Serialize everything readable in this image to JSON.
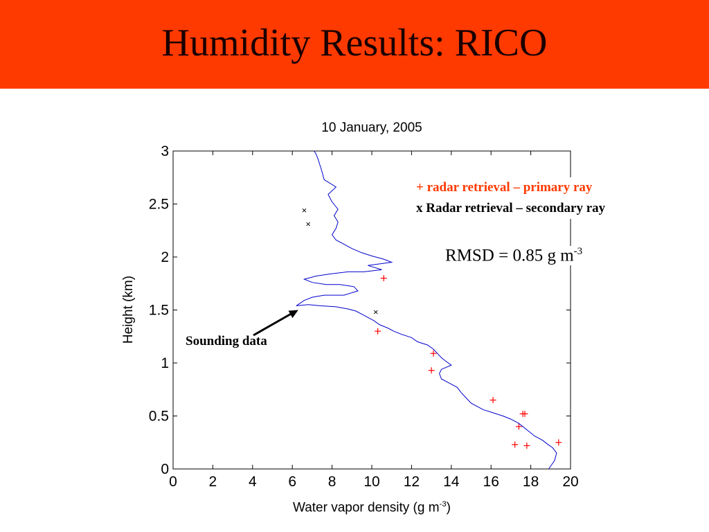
{
  "slide": {
    "title": "Humidity Results: RICO"
  },
  "header_color": "#ff3a00",
  "chart_data": {
    "type": "scatter",
    "title": "10 January, 2005",
    "xlabel": "Water vapor density (g m",
    "xlabel_sup": "-3",
    "xlabel_suffix": ")",
    "ylabel": "Height (km)",
    "xlim": [
      0,
      20
    ],
    "ylim": [
      0,
      3
    ],
    "x_ticks": [
      "0",
      "2",
      "4",
      "6",
      "8",
      "10",
      "12",
      "14",
      "16",
      "18",
      "20"
    ],
    "y_ticks": [
      "0",
      "0.5",
      "1",
      "1.5",
      "2",
      "2.5",
      "3"
    ],
    "grid": false,
    "legend_placement": "top-right",
    "series": [
      {
        "name": "radar retrieval – primary ray",
        "marker": "+",
        "color": "#ff0000",
        "x": [
          10.6,
          10.3,
          13.1,
          13.0,
          16.1,
          17.6,
          17.7,
          17.4,
          19.4,
          17.2,
          17.8
        ],
        "y": [
          1.8,
          1.3,
          1.09,
          0.93,
          0.65,
          0.52,
          0.52,
          0.4,
          0.25,
          0.23,
          0.22
        ]
      },
      {
        "name": "Radar retrieval – secondary ray",
        "marker": "x",
        "color": "#000000",
        "x": [
          6.6,
          6.8,
          10.2
        ],
        "y": [
          2.44,
          2.31,
          1.48
        ]
      },
      {
        "name": "Sounding data",
        "line": true,
        "color": "#0000cc",
        "x": [
          18.9,
          19.2,
          19.3,
          19.1,
          18.8,
          18.6,
          18.4,
          18.2,
          18.0,
          17.8,
          17.6,
          17.4,
          17.0,
          16.6,
          16.1,
          15.6,
          15.0,
          14.7,
          14.5,
          14.3,
          13.9,
          13.5,
          13.4,
          13.5,
          14.0,
          13.7,
          13.5,
          13.3,
          13.1,
          12.8,
          12.3,
          12.0,
          11.5,
          11.1,
          10.8,
          10.4,
          10.1,
          9.8,
          9.5,
          9.2,
          8.8,
          8.2,
          7.4,
          6.8,
          6.2,
          6.6,
          7.0,
          7.6,
          8.6,
          9.3,
          9.1,
          8.4,
          7.7,
          7.0,
          6.6,
          7.2,
          7.9,
          8.8,
          9.6,
          10.5,
          9.8,
          11.0,
          10.6,
          10.0,
          9.5,
          9.0,
          8.6,
          8.2,
          8.0,
          8.2,
          8.3,
          8.1,
          8.3,
          8.0,
          7.8,
          8.2,
          7.6,
          7.5,
          7.4,
          7.3,
          7.2,
          7.1
        ],
        "y": [
          0.0,
          0.08,
          0.15,
          0.2,
          0.24,
          0.27,
          0.29,
          0.31,
          0.34,
          0.37,
          0.4,
          0.43,
          0.47,
          0.5,
          0.53,
          0.56,
          0.62,
          0.68,
          0.72,
          0.77,
          0.81,
          0.85,
          0.9,
          0.94,
          0.98,
          1.02,
          1.05,
          1.09,
          1.13,
          1.17,
          1.2,
          1.24,
          1.27,
          1.3,
          1.33,
          1.36,
          1.4,
          1.43,
          1.46,
          1.49,
          1.51,
          1.53,
          1.54,
          1.55,
          1.54,
          1.59,
          1.62,
          1.64,
          1.64,
          1.68,
          1.72,
          1.74,
          1.74,
          1.76,
          1.79,
          1.82,
          1.84,
          1.86,
          1.86,
          1.88,
          1.92,
          1.95,
          1.98,
          2.01,
          2.04,
          2.08,
          2.12,
          2.16,
          2.21,
          2.27,
          2.33,
          2.39,
          2.45,
          2.52,
          2.59,
          2.66,
          2.73,
          2.8,
          2.86,
          2.92,
          2.97,
          3.0
        ]
      }
    ],
    "legend": {
      "primary": "+ radar retrieval – primary ray",
      "secondary": "x Radar retrieval – secondary ray"
    },
    "annotations": {
      "rmsd_text": "RMSD = 0.85 g m",
      "rmsd_sup": "-3",
      "sounding_label": "Sounding data",
      "sounding_arrow_target": {
        "x": 6.3,
        "y": 1.5
      }
    }
  }
}
